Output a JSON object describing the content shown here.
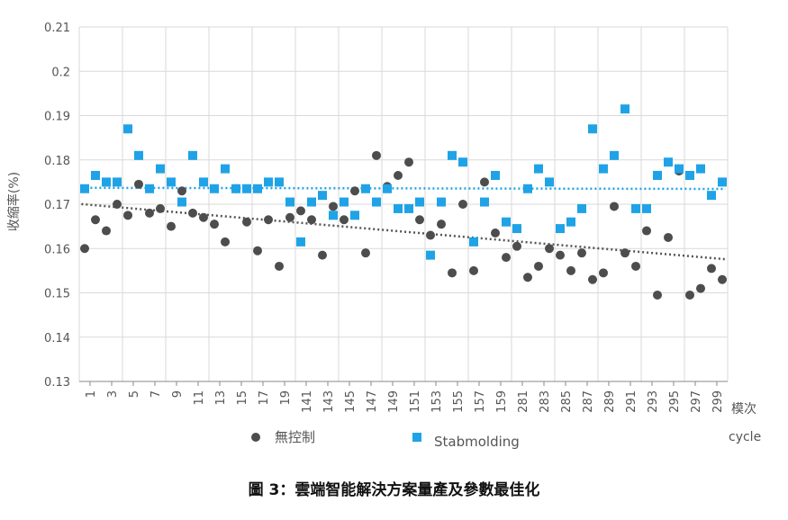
{
  "caption": "圖 3：雲端智能解決方案量產及參數最佳化",
  "chart_data": {
    "type": "scatter",
    "ylabel": "收縮率(%)",
    "xlabel": "模次",
    "xlabel_en": "cycle",
    "ylim": [
      0.13,
      0.21
    ],
    "yticks": [
      "0.13",
      "0.14",
      "0.15",
      "0.16",
      "0.17",
      "0.18",
      "0.19",
      "0.2",
      "0.21"
    ],
    "categories": [
      "1",
      "3",
      "5",
      "7",
      "9",
      "11",
      "13",
      "15",
      "17",
      "19",
      "141",
      "143",
      "145",
      "147",
      "149",
      "151",
      "153",
      "155",
      "157",
      "159",
      "281",
      "283",
      "285",
      "287",
      "289",
      "291",
      "293",
      "295",
      "297",
      "299"
    ],
    "grid": true,
    "trendlines": true,
    "series": [
      {
        "name": "無控制",
        "color": "#4d4d4d",
        "values": [
          0.16,
          0.1665,
          0.164,
          0.17,
          0.1675,
          0.1745,
          0.168,
          0.169,
          0.165,
          0.173,
          0.168,
          0.167,
          0.1655,
          0.1615,
          0.1735,
          0.166,
          0.1595,
          0.1665,
          0.156,
          0.167,
          0.1685,
          0.1665,
          0.1585,
          0.1695,
          0.1665,
          0.173,
          0.159,
          0.181,
          0.174,
          0.1765,
          0.1795,
          0.1665,
          0.163,
          0.1655,
          0.1545,
          0.17,
          0.155,
          0.175,
          0.1635,
          0.158,
          0.1605,
          0.1535,
          0.156,
          0.16,
          0.1585,
          0.155,
          0.159,
          0.153,
          0.1545,
          0.1695,
          0.159,
          0.156,
          0.164,
          0.1495,
          0.1625,
          0.1775,
          0.1495,
          0.151,
          0.1555,
          0.153
        ]
      },
      {
        "name": "Stabmolding",
        "color": "#1fa3e6",
        "values": [
          0.1735,
          0.1765,
          0.175,
          0.175,
          0.187,
          0.181,
          0.1735,
          0.178,
          0.175,
          0.1705,
          0.181,
          0.175,
          0.1735,
          0.178,
          0.1735,
          0.1735,
          0.1735,
          0.175,
          0.175,
          0.1705,
          0.1615,
          0.1705,
          0.172,
          0.1675,
          0.1705,
          0.1675,
          0.1735,
          0.1705,
          0.1735,
          0.169,
          0.169,
          0.1705,
          0.1585,
          0.1705,
          0.181,
          0.1795,
          0.1615,
          0.1705,
          0.1765,
          0.166,
          0.1645,
          0.1735,
          0.178,
          0.175,
          0.1645,
          0.166,
          0.169,
          0.187,
          0.178,
          0.181,
          0.1915,
          0.169,
          0.169,
          0.1765,
          0.1795,
          0.178,
          0.1765,
          0.178,
          0.172,
          0.175
        ]
      }
    ]
  }
}
